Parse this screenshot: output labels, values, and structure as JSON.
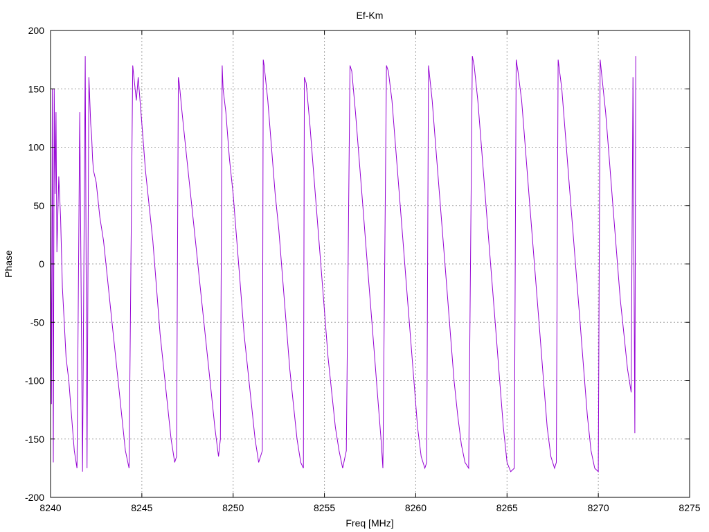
{
  "chart_data": {
    "type": "line",
    "title": "Ef-Km",
    "xlabel": "Freq [MHz]",
    "ylabel": "Phase",
    "xlim": [
      8240,
      8275
    ],
    "ylim": [
      -200,
      200
    ],
    "x_ticks": [
      8240,
      8245,
      8250,
      8255,
      8260,
      8265,
      8270,
      8275
    ],
    "y_ticks": [
      -200,
      -150,
      -100,
      -50,
      0,
      50,
      100,
      150,
      200
    ],
    "grid": true,
    "legend": "none",
    "line_color": "#9400d3",
    "series": [
      {
        "x": [
          8240.0,
          8240.05,
          8240.1,
          8240.15,
          8240.2,
          8240.25,
          8240.3,
          8240.35,
          8240.45,
          8240.55,
          8240.65,
          8240.75,
          8240.85,
          8241.0,
          8241.15,
          8241.3,
          8241.45,
          8241.6,
          8241.75,
          8241.9,
          8242.0,
          8242.1,
          8242.2,
          8242.25,
          8242.3,
          8242.35,
          8242.5,
          8242.7,
          8242.9,
          8243.1,
          8243.3,
          8243.5,
          8243.7,
          8243.9,
          8244.1,
          8244.3,
          8244.5,
          8244.7,
          8244.8,
          8244.85,
          8245.0,
          8245.2,
          8245.4,
          8245.6,
          8245.8,
          8246.0,
          8246.2,
          8246.4,
          8246.6,
          8246.8,
          8246.9,
          8247.0,
          8247.05,
          8247.2,
          8247.4,
          8247.6,
          8247.8,
          8248.0,
          8248.2,
          8248.4,
          8248.6,
          8248.8,
          8249.0,
          8249.2,
          8249.3,
          8249.4,
          8249.45,
          8249.6,
          8249.8,
          8250.0,
          8250.2,
          8250.4,
          8250.6,
          8250.8,
          8251.0,
          8251.2,
          8251.4,
          8251.6,
          8251.65,
          8251.7,
          8251.9,
          8252.1,
          8252.3,
          8252.5,
          8252.7,
          8252.9,
          8253.1,
          8253.3,
          8253.5,
          8253.7,
          8253.85,
          8253.9,
          8254.0,
          8254.2,
          8254.4,
          8254.6,
          8254.8,
          8255.0,
          8255.2,
          8255.4,
          8255.6,
          8255.8,
          8256.0,
          8256.2,
          8256.4,
          8256.5,
          8256.7,
          8256.9,
          8257.1,
          8257.3,
          8257.5,
          8257.7,
          8257.9,
          8258.1,
          8258.2,
          8258.4,
          8258.5,
          8258.7,
          8258.9,
          8259.1,
          8259.3,
          8259.5,
          8259.7,
          8259.9,
          8260.1,
          8260.3,
          8260.5,
          8260.6,
          8260.7,
          8260.9,
          8261.1,
          8261.3,
          8261.5,
          8261.7,
          8261.9,
          8262.1,
          8262.3,
          8262.5,
          8262.7,
          8262.9,
          8263.1,
          8263.2,
          8263.4,
          8263.6,
          8263.8,
          8264.0,
          8264.2,
          8264.4,
          8264.6,
          8264.8,
          8265.0,
          8265.2,
          8265.4,
          8265.5,
          8265.6,
          8265.8,
          8266.0,
          8266.2,
          8266.4,
          8266.6,
          8266.8,
          8267.0,
          8267.2,
          8267.4,
          8267.6,
          8267.7,
          8267.8,
          8268.0,
          8268.2,
          8268.4,
          8268.6,
          8268.8,
          8269.0,
          8269.2,
          8269.4,
          8269.6,
          8269.8,
          8270.0,
          8270.1,
          8270.2,
          8270.4,
          8270.6,
          8270.8,
          8271.0,
          8271.2,
          8271.4,
          8271.6,
          8271.8,
          8271.9,
          8272.0,
          8272.05
        ],
        "y": [
          70,
          -120,
          150,
          -170,
          150,
          60,
          130,
          10,
          75,
          40,
          -20,
          -50,
          -80,
          -100,
          -130,
          -160,
          -175,
          130,
          -178,
          178,
          -175,
          160,
          120,
          110,
          90,
          80,
          70,
          40,
          20,
          -10,
          -40,
          -70,
          -100,
          -130,
          -160,
          -175,
          170,
          140,
          160,
          150,
          120,
          80,
          50,
          20,
          -20,
          -60,
          -90,
          -120,
          -150,
          -170,
          -165,
          160,
          155,
          130,
          100,
          70,
          40,
          10,
          -20,
          -50,
          -80,
          -110,
          -140,
          -165,
          -150,
          170,
          150,
          130,
          90,
          60,
          20,
          -20,
          -60,
          -90,
          -120,
          -150,
          -170,
          -160,
          175,
          170,
          140,
          100,
          60,
          30,
          -10,
          -50,
          -90,
          -120,
          -150,
          -170,
          -175,
          160,
          155,
          120,
          80,
          40,
          0,
          -40,
          -80,
          -110,
          -140,
          -160,
          -175,
          -160,
          170,
          165,
          130,
          90,
          50,
          10,
          -30,
          -70,
          -110,
          -150,
          -175,
          170,
          165,
          140,
          100,
          60,
          20,
          -20,
          -60,
          -100,
          -140,
          -165,
          -175,
          -170,
          170,
          140,
          100,
          60,
          20,
          -20,
          -60,
          -100,
          -130,
          -155,
          -170,
          -175,
          178,
          170,
          140,
          100,
          60,
          20,
          -20,
          -60,
          -100,
          -140,
          -170,
          -178,
          -175,
          175,
          165,
          140,
          100,
          60,
          20,
          -20,
          -60,
          -100,
          -140,
          -165,
          -175,
          -170,
          175,
          150,
          110,
          70,
          30,
          -10,
          -50,
          -90,
          -130,
          -160,
          -175,
          -178,
          175,
          160,
          130,
          90,
          50,
          10,
          -30,
          -60,
          -90,
          -110,
          160,
          -145,
          178
        ]
      }
    ]
  }
}
